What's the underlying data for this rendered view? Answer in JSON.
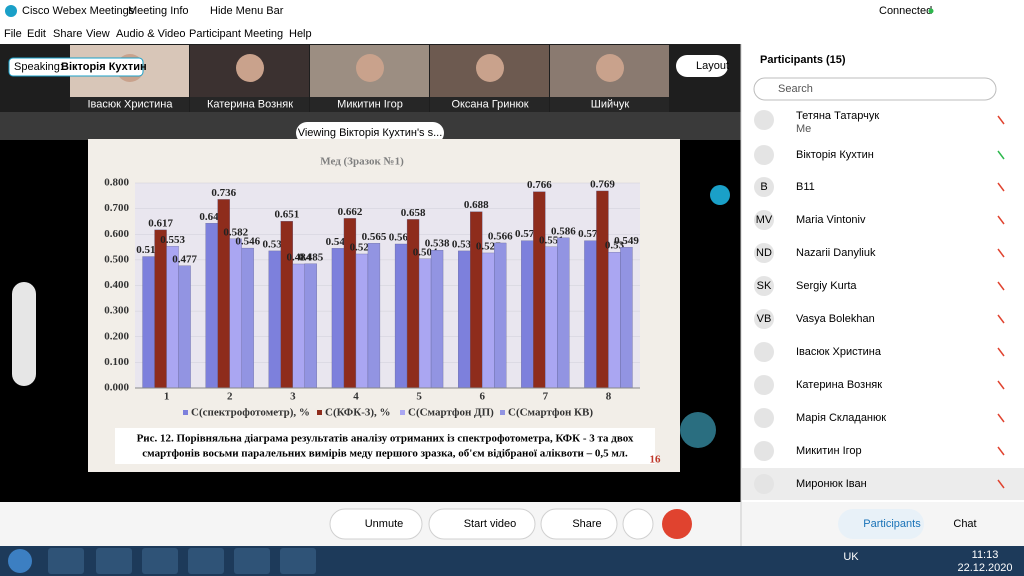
{
  "window": {
    "app_title": "Cisco Webex Meetings",
    "meeting_info": "Meeting Info",
    "hide_menu_bar": "Hide Menu Bar",
    "status": "Connected"
  },
  "menu": [
    "File",
    "Edit",
    "Share",
    "View",
    "Audio & Video",
    "Participant",
    "Meeting",
    "Help"
  ],
  "speaking": {
    "label": "Speaking:",
    "name": "Вікторія Кухтин"
  },
  "layout_button": "Layout",
  "video_tiles": [
    "Івасюк Христина",
    "Катерина Возняк",
    "Микитин Ігор",
    "Оксана Гринюк",
    "Шийчук"
  ],
  "viewing_banner": "Viewing Вікторія Кухтин's s...",
  "slide": {
    "caption_lines": [
      "Рис. 12. Порівняльна діаграма результатів аналізу отриманих із спектрофотометра, КФК - 3 та двох",
      "смартфонів восьми паралельних вимірів меду першого зразка,  об'єм відібраної аліквоти – 0,5 мл."
    ],
    "page_number": "16"
  },
  "chart_data": {
    "type": "bar",
    "title": "Мед (Зразок №1)",
    "categories": [
      "1",
      "2",
      "3",
      "4",
      "5",
      "6",
      "7",
      "8"
    ],
    "series": [
      {
        "name": "C(спектрофотометр), %",
        "color": "#7d80dc",
        "values": [
          0.513,
          0.643,
          0.535,
          0.545,
          0.562,
          0.535,
          0.575,
          0.575
        ]
      },
      {
        "name": "C(КФК-3), %",
        "color": "#8e2c1c",
        "values": [
          0.617,
          0.736,
          0.651,
          0.662,
          0.658,
          0.688,
          0.766,
          0.769
        ]
      },
      {
        "name": "C(Смартфон ДП)",
        "color": "#aaa6f2",
        "values": [
          0.553,
          0.582,
          0.484,
          0.523,
          0.504,
          0.527,
          0.551,
          0.53
        ]
      },
      {
        "name": "C(Смартфон КВ)",
        "color": "#9294e2",
        "values": [
          0.477,
          0.546,
          0.485,
          0.565,
          0.538,
          0.566,
          0.586,
          0.549
        ]
      }
    ],
    "ylim": [
      0,
      0.8
    ],
    "yticks": [
      {
        "value": 0,
        "label": "0.000"
      },
      {
        "value": 0.1,
        "label": "0.100"
      },
      {
        "value": 0.2,
        "label": "0.200"
      },
      {
        "value": 0.3,
        "label": "0.300"
      },
      {
        "value": 0.4,
        "label": "0.400"
      },
      {
        "value": 0.5,
        "label": "0.500"
      },
      {
        "value": 0.6,
        "label": "0.600"
      },
      {
        "value": 0.7,
        "label": "0.700"
      },
      {
        "value": 0.8,
        "label": "0.800"
      }
    ],
    "legend": "bottom"
  },
  "participants_panel": {
    "title": "Participants (15)",
    "search_placeholder": "Search",
    "people": [
      {
        "name": "Тетяна Татарчук",
        "note": "Me"
      },
      {
        "name": "Вікторія Кухтин"
      },
      {
        "name": "B11",
        "initials": "B"
      },
      {
        "name": "Maria Vintoniv",
        "initials": "MV"
      },
      {
        "name": "Nazarii Danyliuk",
        "initials": "ND"
      },
      {
        "name": "Sergiy Kurta",
        "initials": "SK"
      },
      {
        "name": "Vasya Bolekhan",
        "initials": "VB"
      },
      {
        "name": "Івасюк Христина"
      },
      {
        "name": "Катерина Возняк"
      },
      {
        "name": "Марія Складанюк"
      },
      {
        "name": "Микитин Ігор"
      },
      {
        "name": "Миронюк Іван"
      }
    ]
  },
  "controls": [
    "Unmute",
    "Start video",
    "Share"
  ],
  "panel_tabs": [
    "Participants",
    "Chat"
  ],
  "taskbar": {
    "language": "UK",
    "time": "11:13",
    "date": "22.12.2020"
  }
}
